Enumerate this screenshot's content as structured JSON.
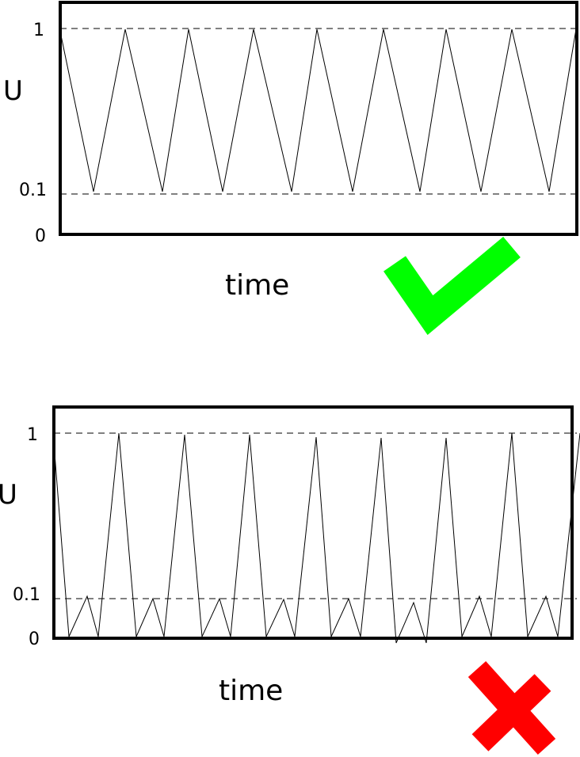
{
  "panels": [
    {
      "ylabel": "U",
      "xlabel": "time",
      "ticks": {
        "top": "1",
        "mid": "0.1",
        "bottom": "0"
      },
      "verdict": "correct",
      "verdict_color": "#00ff00",
      "line_style": "sawtooth between 0.1 and 1"
    },
    {
      "ylabel": "U",
      "xlabel": "time",
      "ticks": {
        "top": "1",
        "mid": "0.1",
        "bottom": "0"
      },
      "verdict": "incorrect",
      "verdict_color": "#ff0000",
      "line_style": "spikes dipping to 0 with small 0.1 bumps"
    }
  ],
  "icons": [
    "check-mark-icon",
    "cross-mark-icon"
  ]
}
